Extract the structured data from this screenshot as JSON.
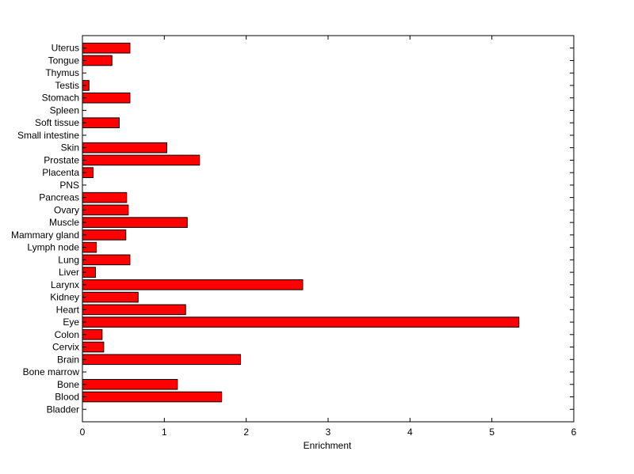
{
  "chart_data": {
    "type": "bar",
    "orientation": "horizontal",
    "title": "",
    "xlabel": "Enrichment",
    "ylabel": "",
    "xlim": [
      0,
      6
    ],
    "xticks": [
      0,
      1,
      2,
      3,
      4,
      5,
      6
    ],
    "grid": false,
    "legend": "none",
    "bar_color": "#ff0000",
    "categories": [
      "Bladder",
      "Blood",
      "Bone",
      "Bone marrow",
      "Brain",
      "Cervix",
      "Colon",
      "Eye",
      "Heart",
      "Kidney",
      "Larynx",
      "Liver",
      "Lung",
      "Lymph node",
      "Mammary gland",
      "Muscle",
      "Ovary",
      "Pancreas",
      "PNS",
      "Placenta",
      "Prostate",
      "Skin",
      "Small intestine",
      "Soft tissue",
      "Spleen",
      "Stomach",
      "Testis",
      "Thymus",
      "Tongue",
      "Uterus"
    ],
    "values": [
      0,
      1.7,
      1.16,
      0,
      1.93,
      0.26,
      0.24,
      5.33,
      1.26,
      0.68,
      2.69,
      0.16,
      0.58,
      0.17,
      0.53,
      1.28,
      0.56,
      0.54,
      0,
      0.13,
      1.43,
      1.03,
      0,
      0.45,
      0,
      0.58,
      0.08,
      0,
      0.36,
      0.58
    ]
  }
}
